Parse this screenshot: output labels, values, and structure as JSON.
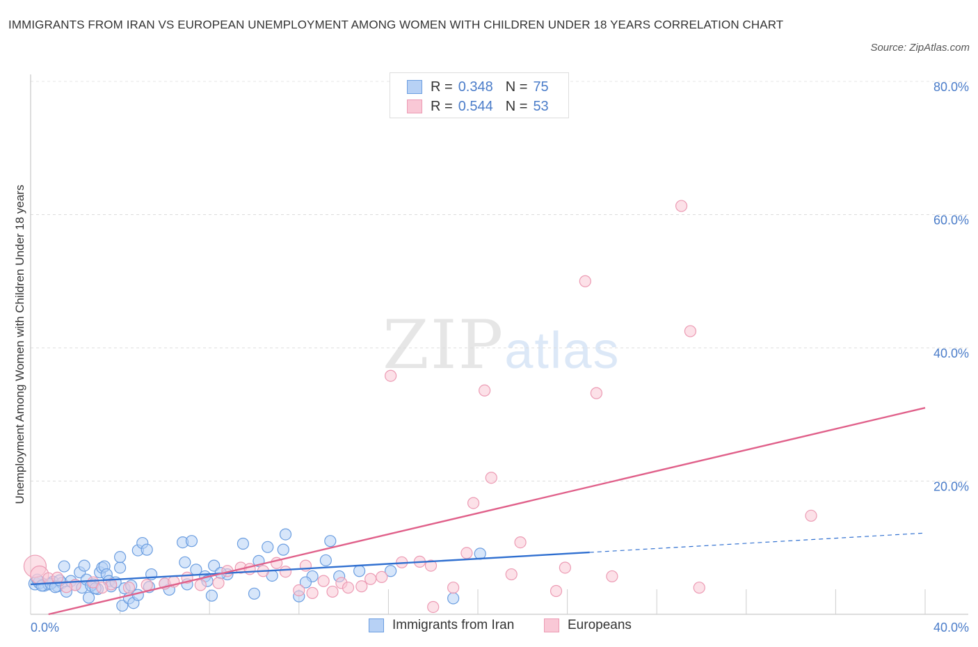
{
  "header": {
    "title": "IMMIGRANTS FROM IRAN VS EUROPEAN UNEMPLOYMENT AMONG WOMEN WITH CHILDREN UNDER 18 YEARS CORRELATION CHART",
    "source": "Source: ZipAtlas.com"
  },
  "watermark": {
    "zip": "ZIP",
    "atlas": "atlas"
  },
  "legend": {
    "rows": [
      {
        "r_label": "R =",
        "r_value": "0.348",
        "n_label": "N =",
        "n_value": "75"
      },
      {
        "r_label": "R =",
        "r_value": "0.544",
        "n_label": "N =",
        "n_value": "53"
      }
    ]
  },
  "bottom_legend": {
    "iran": "Immigrants from Iran",
    "europeans": "Europeans"
  },
  "colors": {
    "iran_fill": "#b7d1f5",
    "iran_stroke": "#6a9de0",
    "iran_line": "#2f6fd0",
    "euro_fill": "#f9c8d6",
    "euro_stroke": "#ec9ab3",
    "euro_line": "#e0608a",
    "tick_text": "#4a7cc9"
  },
  "chart_data": {
    "type": "scatter",
    "title": "IMMIGRANTS FROM IRAN VS EUROPEAN UNEMPLOYMENT AMONG WOMEN WITH CHILDREN UNDER 18 YEARS CORRELATION CHART",
    "xlabel": "",
    "ylabel": "Unemployment Among Women with Children Under 18 years",
    "xlim": [
      0,
      40
    ],
    "ylim": [
      0,
      80
    ],
    "x_tick_labels": [
      "0.0%",
      "40.0%"
    ],
    "y_ticks": [
      20,
      40,
      60,
      80
    ],
    "y_tick_labels": [
      "20.0%",
      "40.0%",
      "60.0%",
      "80.0%"
    ],
    "grid": true,
    "legend_position": "top-center",
    "series": [
      {
        "name": "Immigrants from Iran",
        "R": 0.348,
        "N": 75,
        "trend": {
          "x0": 0,
          "y0": 4.5,
          "x1": 25,
          "y1": 9.3,
          "dash_to_x": 40,
          "dash_to_y": 12.2
        },
        "points": [
          [
            0.2,
            4.6
          ],
          [
            0.4,
            4.8
          ],
          [
            0.6,
            4.4
          ],
          [
            0.8,
            4.5
          ],
          [
            1.0,
            4.9
          ],
          [
            1.2,
            4.2
          ],
          [
            1.4,
            4.7
          ],
          [
            1.5,
            7.2
          ],
          [
            1.6,
            3.4
          ],
          [
            1.8,
            5.0
          ],
          [
            2.0,
            4.4
          ],
          [
            2.2,
            6.3
          ],
          [
            2.3,
            4.0
          ],
          [
            2.4,
            7.3
          ],
          [
            2.5,
            5.2
          ],
          [
            2.6,
            2.5
          ],
          [
            2.8,
            4.5
          ],
          [
            3.0,
            3.8
          ],
          [
            3.1,
            6.3
          ],
          [
            3.2,
            7.0
          ],
          [
            3.3,
            7.2
          ],
          [
            3.4,
            6.0
          ],
          [
            3.5,
            5.0
          ],
          [
            3.6,
            4.2
          ],
          [
            3.8,
            4.8
          ],
          [
            4.0,
            7.0
          ],
          [
            4.0,
            8.6
          ],
          [
            4.1,
            1.3
          ],
          [
            4.2,
            3.9
          ],
          [
            4.4,
            2.4
          ],
          [
            4.6,
            1.7
          ],
          [
            4.8,
            2.9
          ],
          [
            4.8,
            9.6
          ],
          [
            5.0,
            10.7
          ],
          [
            5.2,
            9.7
          ],
          [
            5.3,
            4.1
          ],
          [
            5.4,
            6.0
          ],
          [
            6.2,
            3.7
          ],
          [
            6.8,
            10.8
          ],
          [
            6.9,
            7.8
          ],
          [
            7.0,
            4.5
          ],
          [
            7.2,
            11.0
          ],
          [
            7.4,
            6.7
          ],
          [
            7.8,
            5.7
          ],
          [
            7.9,
            5.0
          ],
          [
            8.1,
            2.8
          ],
          [
            8.2,
            7.3
          ],
          [
            8.8,
            6.0
          ],
          [
            9.5,
            10.6
          ],
          [
            10.0,
            3.1
          ],
          [
            10.2,
            8.0
          ],
          [
            10.6,
            10.1
          ],
          [
            10.8,
            5.8
          ],
          [
            11.3,
            9.7
          ],
          [
            11.4,
            12.0
          ],
          [
            12.0,
            2.7
          ],
          [
            12.6,
            5.7
          ],
          [
            13.2,
            8.1
          ],
          [
            13.4,
            11.0
          ],
          [
            13.8,
            5.7
          ],
          [
            14.7,
            6.5
          ],
          [
            16.1,
            6.5
          ],
          [
            18.9,
            2.4
          ],
          [
            20.1,
            9.1
          ],
          [
            0.3,
            5.2
          ],
          [
            0.5,
            4.3
          ],
          [
            0.9,
            4.6
          ],
          [
            1.1,
            4.1
          ],
          [
            1.3,
            5.1
          ],
          [
            2.7,
            4.3
          ],
          [
            2.9,
            3.9
          ],
          [
            4.5,
            4.3
          ],
          [
            6.0,
            4.6
          ],
          [
            8.5,
            6.2
          ],
          [
            12.3,
            4.8
          ]
        ]
      },
      {
        "name": "Europeans",
        "R": 0.544,
        "N": 53,
        "trend": {
          "x0": 0.8,
          "y0": 0,
          "x1": 40,
          "y1": 31
        },
        "points": [
          [
            0.2,
            7.2
          ],
          [
            0.4,
            5.9
          ],
          [
            0.8,
            5.4
          ],
          [
            1.2,
            5.5
          ],
          [
            2.0,
            4.4
          ],
          [
            2.8,
            4.8
          ],
          [
            3.6,
            4.5
          ],
          [
            4.4,
            4.0
          ],
          [
            5.2,
            4.4
          ],
          [
            6.0,
            4.6
          ],
          [
            6.4,
            4.9
          ],
          [
            7.0,
            5.5
          ],
          [
            7.6,
            4.4
          ],
          [
            8.4,
            4.7
          ],
          [
            8.8,
            6.5
          ],
          [
            9.4,
            7.0
          ],
          [
            9.8,
            6.8
          ],
          [
            10.4,
            6.5
          ],
          [
            11.0,
            7.7
          ],
          [
            11.4,
            6.4
          ],
          [
            12.0,
            3.6
          ],
          [
            12.3,
            7.3
          ],
          [
            12.6,
            3.2
          ],
          [
            13.1,
            5.0
          ],
          [
            13.5,
            3.4
          ],
          [
            13.9,
            4.7
          ],
          [
            14.2,
            4.0
          ],
          [
            14.8,
            4.2
          ],
          [
            15.2,
            5.3
          ],
          [
            15.7,
            5.6
          ],
          [
            16.1,
            35.8
          ],
          [
            16.6,
            7.8
          ],
          [
            17.4,
            7.9
          ],
          [
            17.9,
            7.3
          ],
          [
            18.0,
            1.1
          ],
          [
            18.9,
            4.0
          ],
          [
            19.5,
            9.2
          ],
          [
            19.8,
            16.7
          ],
          [
            20.3,
            33.6
          ],
          [
            20.6,
            20.5
          ],
          [
            21.5,
            6.0
          ],
          [
            21.9,
            10.8
          ],
          [
            23.5,
            3.5
          ],
          [
            23.9,
            7.0
          ],
          [
            24.8,
            50.0
          ],
          [
            25.3,
            33.2
          ],
          [
            26.0,
            5.7
          ],
          [
            29.1,
            61.3
          ],
          [
            29.5,
            42.5
          ],
          [
            29.9,
            4.0
          ],
          [
            34.9,
            14.8
          ],
          [
            1.6,
            4.1
          ],
          [
            3.2,
            4.0
          ]
        ]
      }
    ]
  }
}
